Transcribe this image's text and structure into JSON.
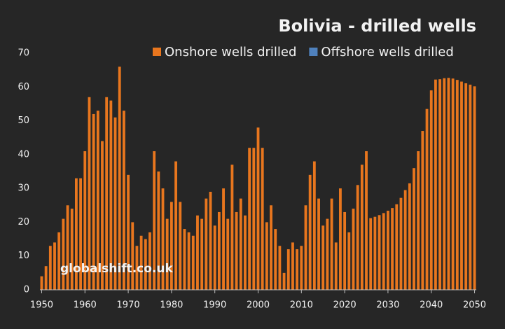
{
  "chart_data": {
    "type": "bar",
    "title": "Bolivia - drilled wells",
    "watermark": "globalshift.co.uk",
    "x": [
      1950,
      1951,
      1952,
      1953,
      1954,
      1955,
      1956,
      1957,
      1958,
      1959,
      1960,
      1961,
      1962,
      1963,
      1964,
      1965,
      1966,
      1967,
      1968,
      1969,
      1970,
      1971,
      1972,
      1973,
      1974,
      1975,
      1976,
      1977,
      1978,
      1979,
      1980,
      1981,
      1982,
      1983,
      1984,
      1985,
      1986,
      1987,
      1988,
      1989,
      1990,
      1991,
      1992,
      1993,
      1994,
      1995,
      1996,
      1997,
      1998,
      1999,
      2000,
      2001,
      2002,
      2003,
      2004,
      2005,
      2006,
      2007,
      2008,
      2009,
      2010,
      2011,
      2012,
      2013,
      2014,
      2015,
      2016,
      2017,
      2018,
      2019,
      2020,
      2021,
      2022,
      2023,
      2024,
      2025,
      2026,
      2027,
      2028,
      2029,
      2030,
      2031,
      2032,
      2033,
      2034,
      2035,
      2036,
      2037,
      2038,
      2039,
      2040,
      2041,
      2042,
      2043,
      2044,
      2045,
      2046,
      2047,
      2048,
      2049,
      2050
    ],
    "series": [
      {
        "name": "Onshore wells drilled",
        "color": "#e8761e",
        "values": [
          4,
          7,
          13,
          14,
          17,
          21,
          25,
          24,
          33,
          33,
          41,
          57,
          52,
          53,
          44,
          57,
          56,
          51,
          66,
          53,
          34,
          20,
          13,
          16,
          15,
          17,
          41,
          35,
          30,
          21,
          26,
          38,
          26,
          18,
          17,
          16,
          22,
          21,
          27,
          29,
          19,
          23,
          30,
          21,
          37,
          23,
          27,
          22,
          42,
          42,
          48,
          42,
          20,
          25,
          18,
          13,
          5,
          12,
          14,
          12,
          13,
          25,
          34,
          38,
          27,
          19,
          21,
          27,
          14,
          30,
          23,
          17,
          24,
          31,
          37,
          41,
          21.2,
          21.6,
          22.1,
          22.7,
          23.4,
          24.2,
          25.3,
          27.2,
          29.5,
          31.5,
          36,
          41,
          47,
          53.5,
          59,
          62.2,
          62.3,
          62.6,
          62.7,
          62.5,
          62.1,
          61.6,
          61.1,
          60.7,
          60.2
        ]
      },
      {
        "name": "Offshore wells drilled",
        "color": "#4f81bd",
        "values": [
          0,
          0,
          0,
          0,
          0,
          0,
          0,
          0,
          0,
          0,
          0,
          0,
          0,
          0,
          0,
          0,
          0,
          0,
          0,
          0,
          0,
          0,
          0,
          0,
          0,
          0,
          0,
          0,
          0,
          0,
          0,
          0,
          0,
          0,
          0,
          0,
          0,
          0,
          0,
          0,
          0,
          0,
          0,
          0,
          0,
          0,
          0,
          0,
          0,
          0,
          0,
          0,
          0,
          0,
          0,
          0,
          0,
          0,
          0,
          0,
          0,
          0,
          0,
          0,
          0,
          0,
          0,
          0,
          0,
          0,
          0,
          0,
          0,
          0,
          0,
          0,
          0,
          0,
          0,
          0,
          0,
          0,
          0,
          0,
          0,
          0,
          0,
          0,
          0,
          0,
          0,
          0,
          0,
          0,
          0,
          0,
          0,
          0,
          0,
          0,
          0
        ]
      }
    ],
    "xlim": [
      1949.6,
      2050.4
    ],
    "xticks": [
      1950,
      1960,
      1970,
      1980,
      1990,
      2000,
      2010,
      2020,
      2030,
      2040,
      2050
    ],
    "ylim": [
      0,
      70
    ],
    "yticks": [
      0,
      10,
      20,
      30,
      40,
      50,
      60,
      70
    ],
    "stacked": true,
    "grid": false
  }
}
